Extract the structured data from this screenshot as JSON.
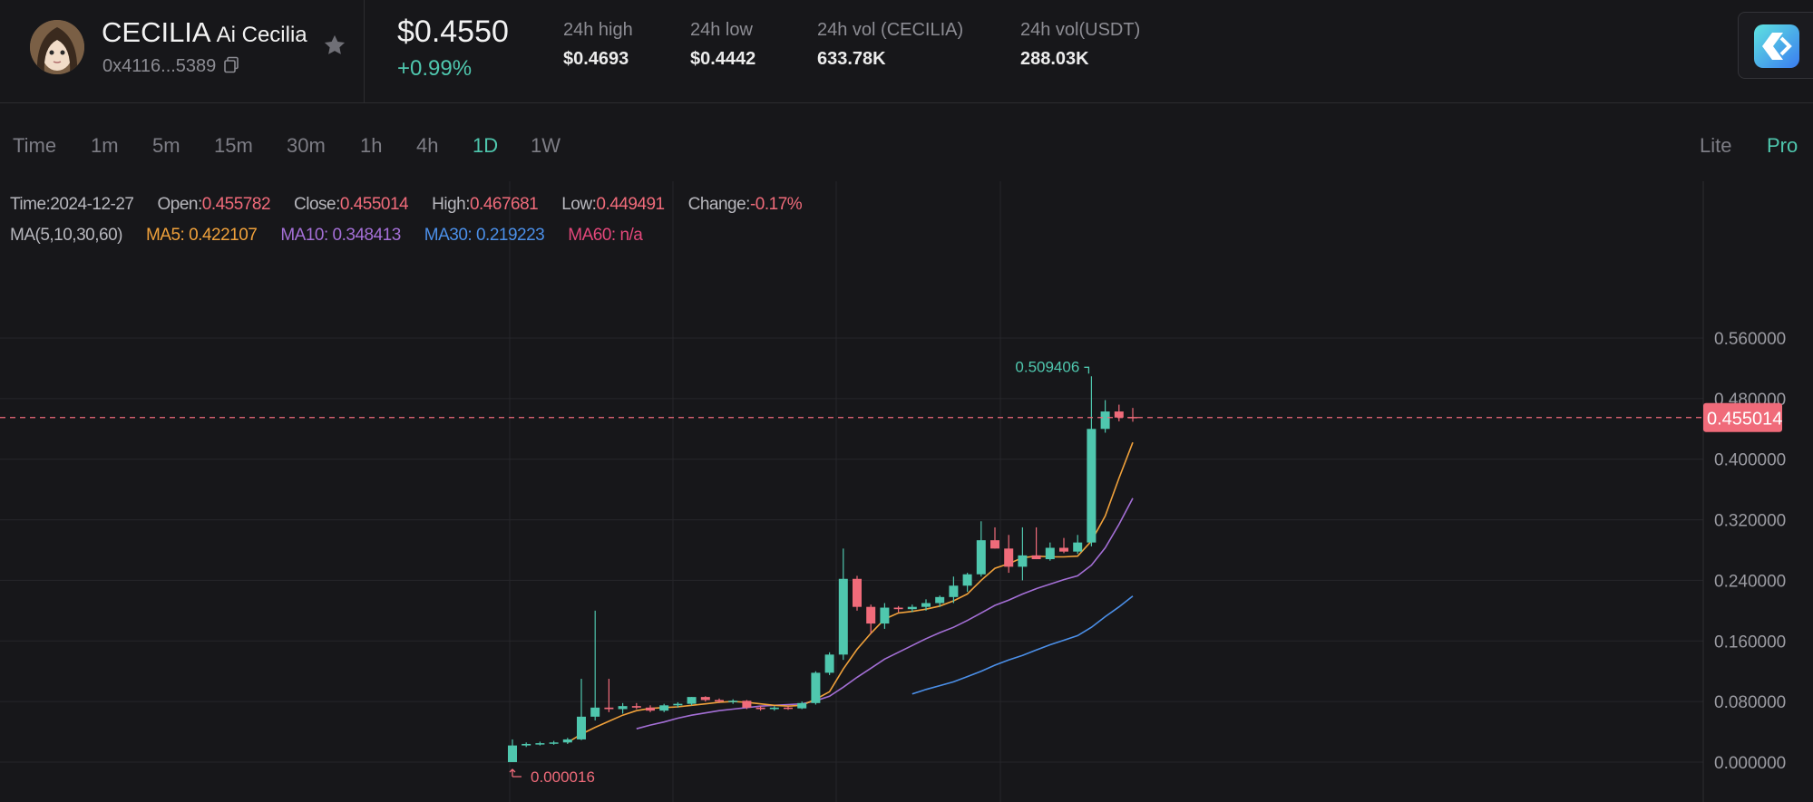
{
  "header": {
    "symbol": "CECILIA",
    "name": "Ai Cecilia",
    "contract": "0x4116...5389",
    "price": "$0.4550",
    "change": "+0.99%",
    "stats": [
      {
        "label": "24h high",
        "value": "$0.4693"
      },
      {
        "label": "24h low",
        "value": "$0.4442"
      },
      {
        "label": "24h vol (CECILIA)",
        "value": "633.78K"
      },
      {
        "label": "24h vol(USDT)",
        "value": "288.03K"
      }
    ]
  },
  "toolbar": {
    "intervals": [
      "Time",
      "1m",
      "5m",
      "15m",
      "30m",
      "1h",
      "4h",
      "1D",
      "1W"
    ],
    "active_interval": "1D",
    "modes": [
      "Lite",
      "Pro"
    ],
    "active_mode": "Pro"
  },
  "info": {
    "time_label": "Time:",
    "time": "2024-12-27",
    "open_label": "Open:",
    "open": "0.455782",
    "close_label": "Close:",
    "close": "0.455014",
    "high_label": "High:",
    "high": "0.467681",
    "low_label": "Low:",
    "low": "0.449491",
    "change_label": "Change:",
    "change": "-0.17%",
    "ma_label": "MA(5,10,30,60)",
    "ma5": "MA5: 0.422107",
    "ma10": "MA10: 0.348413",
    "ma30": "MA30: 0.219223",
    "ma60": "MA60: n/a"
  },
  "colors": {
    "up": "#4fc7ae",
    "down": "#f06b7a",
    "ma5": "#f0a13b",
    "ma10": "#a46fd6",
    "ma30": "#4b8fe8",
    "ma60": "#e2477a",
    "accent": "#4fc7ae"
  },
  "chart_data": {
    "type": "candlestick",
    "y_ticks": [
      "0.560000",
      "0.480000",
      "0.400000",
      "0.320000",
      "0.240000",
      "0.160000",
      "0.080000",
      "0.000000"
    ],
    "ylim": [
      0,
      0.56
    ],
    "current_price_label": "0.455014",
    "max_label": "0.509406",
    "min_label": "0.000016",
    "candles": [
      {
        "o": 1.6e-05,
        "h": 0.03,
        "l": 1.6e-05,
        "c": 0.022
      },
      {
        "o": 0.022,
        "h": 0.026,
        "l": 0.02,
        "c": 0.024
      },
      {
        "o": 0.024,
        "h": 0.027,
        "l": 0.022,
        "c": 0.025
      },
      {
        "o": 0.025,
        "h": 0.028,
        "l": 0.023,
        "c": 0.026
      },
      {
        "o": 0.026,
        "h": 0.032,
        "l": 0.024,
        "c": 0.03
      },
      {
        "o": 0.03,
        "h": 0.11,
        "l": 0.029,
        "c": 0.06
      },
      {
        "o": 0.06,
        "h": 0.2,
        "l": 0.055,
        "c": 0.072
      },
      {
        "o": 0.072,
        "h": 0.11,
        "l": 0.066,
        "c": 0.07
      },
      {
        "o": 0.07,
        "h": 0.078,
        "l": 0.064,
        "c": 0.074
      },
      {
        "o": 0.074,
        "h": 0.078,
        "l": 0.07,
        "c": 0.072
      },
      {
        "o": 0.072,
        "h": 0.075,
        "l": 0.066,
        "c": 0.068
      },
      {
        "o": 0.068,
        "h": 0.077,
        "l": 0.066,
        "c": 0.075
      },
      {
        "o": 0.075,
        "h": 0.079,
        "l": 0.072,
        "c": 0.077
      },
      {
        "o": 0.077,
        "h": 0.086,
        "l": 0.075,
        "c": 0.086
      },
      {
        "o": 0.086,
        "h": 0.087,
        "l": 0.08,
        "c": 0.082
      },
      {
        "o": 0.082,
        "h": 0.084,
        "l": 0.078,
        "c": 0.08
      },
      {
        "o": 0.08,
        "h": 0.083,
        "l": 0.077,
        "c": 0.081
      },
      {
        "o": 0.081,
        "h": 0.082,
        "l": 0.07,
        "c": 0.072
      },
      {
        "o": 0.072,
        "h": 0.074,
        "l": 0.068,
        "c": 0.07
      },
      {
        "o": 0.07,
        "h": 0.074,
        "l": 0.068,
        "c": 0.072
      },
      {
        "o": 0.072,
        "h": 0.074,
        "l": 0.069,
        "c": 0.071
      },
      {
        "o": 0.071,
        "h": 0.08,
        "l": 0.07,
        "c": 0.078
      },
      {
        "o": 0.078,
        "h": 0.12,
        "l": 0.076,
        "c": 0.118
      },
      {
        "o": 0.118,
        "h": 0.145,
        "l": 0.115,
        "c": 0.142
      },
      {
        "o": 0.142,
        "h": 0.282,
        "l": 0.135,
        "c": 0.242
      },
      {
        "o": 0.242,
        "h": 0.246,
        "l": 0.2,
        "c": 0.205
      },
      {
        "o": 0.205,
        "h": 0.208,
        "l": 0.17,
        "c": 0.183
      },
      {
        "o": 0.183,
        "h": 0.21,
        "l": 0.176,
        "c": 0.204
      },
      {
        "o": 0.204,
        "h": 0.206,
        "l": 0.198,
        "c": 0.202
      },
      {
        "o": 0.202,
        "h": 0.208,
        "l": 0.198,
        "c": 0.205
      },
      {
        "o": 0.205,
        "h": 0.215,
        "l": 0.2,
        "c": 0.21
      },
      {
        "o": 0.21,
        "h": 0.22,
        "l": 0.205,
        "c": 0.218
      },
      {
        "o": 0.218,
        "h": 0.245,
        "l": 0.21,
        "c": 0.233
      },
      {
        "o": 0.233,
        "h": 0.25,
        "l": 0.225,
        "c": 0.248
      },
      {
        "o": 0.248,
        "h": 0.318,
        "l": 0.245,
        "c": 0.293
      },
      {
        "o": 0.293,
        "h": 0.31,
        "l": 0.282,
        "c": 0.282
      },
      {
        "o": 0.282,
        "h": 0.3,
        "l": 0.25,
        "c": 0.258
      },
      {
        "o": 0.258,
        "h": 0.31,
        "l": 0.24,
        "c": 0.273
      },
      {
        "o": 0.273,
        "h": 0.31,
        "l": 0.268,
        "c": 0.268
      },
      {
        "o": 0.268,
        "h": 0.29,
        "l": 0.266,
        "c": 0.283
      },
      {
        "o": 0.283,
        "h": 0.296,
        "l": 0.276,
        "c": 0.278
      },
      {
        "o": 0.278,
        "h": 0.3,
        "l": 0.275,
        "c": 0.29
      },
      {
        "o": 0.29,
        "h": 0.509406,
        "l": 0.285,
        "c": 0.44
      },
      {
        "o": 0.44,
        "h": 0.478,
        "l": 0.435,
        "c": 0.463
      },
      {
        "o": 0.463,
        "h": 0.472,
        "l": 0.45,
        "c": 0.455
      },
      {
        "o": 0.455782,
        "h": 0.467681,
        "l": 0.449491,
        "c": 0.455014
      }
    ],
    "ma5": [
      null,
      null,
      null,
      null,
      0.026,
      0.037,
      0.046,
      0.054,
      0.062,
      0.068,
      0.071,
      0.072,
      0.073,
      0.075,
      0.077,
      0.079,
      0.08,
      0.079,
      0.077,
      0.075,
      0.074,
      0.075,
      0.083,
      0.093,
      0.123,
      0.149,
      0.17,
      0.189,
      0.197,
      0.199,
      0.202,
      0.206,
      0.213,
      0.222,
      0.24,
      0.256,
      0.262,
      0.27,
      0.272,
      0.271,
      0.271,
      0.272,
      0.292,
      0.325,
      0.375,
      0.422107
    ],
    "ma10": [
      null,
      null,
      null,
      null,
      null,
      null,
      null,
      null,
      null,
      0.044,
      0.049,
      0.053,
      0.058,
      0.062,
      0.065,
      0.068,
      0.07,
      0.072,
      0.074,
      0.075,
      0.076,
      0.077,
      0.081,
      0.087,
      0.099,
      0.112,
      0.124,
      0.136,
      0.145,
      0.154,
      0.163,
      0.171,
      0.178,
      0.187,
      0.197,
      0.207,
      0.214,
      0.222,
      0.229,
      0.235,
      0.241,
      0.246,
      0.26,
      0.283,
      0.314,
      0.348413
    ],
    "ma30": [
      null,
      null,
      null,
      null,
      null,
      null,
      null,
      null,
      null,
      null,
      null,
      null,
      null,
      null,
      null,
      null,
      null,
      null,
      null,
      null,
      null,
      null,
      null,
      null,
      null,
      null,
      null,
      null,
      null,
      0.09,
      0.096,
      0.101,
      0.106,
      0.113,
      0.12,
      0.128,
      0.135,
      0.141,
      0.148,
      0.155,
      0.161,
      0.167,
      0.178,
      0.192,
      0.205,
      0.219223
    ]
  }
}
